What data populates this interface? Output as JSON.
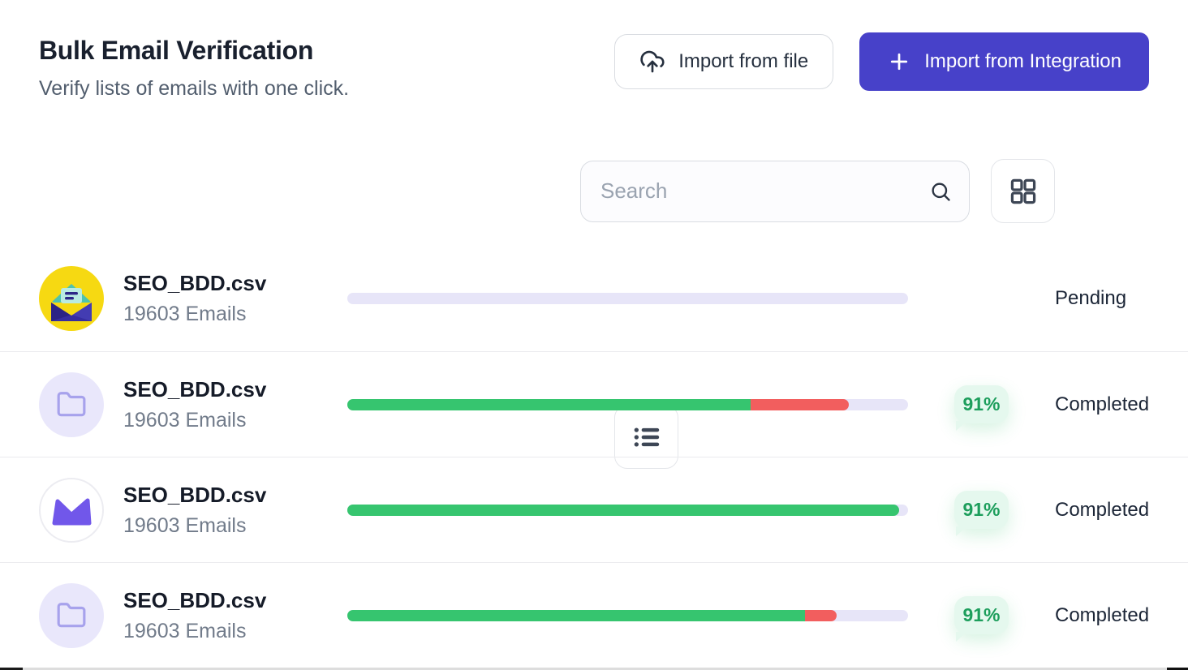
{
  "page": {
    "title": "Bulk Email Verification",
    "subtitle": "Verify lists of emails with one click."
  },
  "header_actions": {
    "import_file_label": "Import from file",
    "import_integration_label": "Import from Integration"
  },
  "toolbar": {
    "search_placeholder": "Search",
    "view_modes": [
      "list-view",
      "grid-view"
    ]
  },
  "colors": {
    "accent": "#4741c9",
    "green": "#36c56f",
    "red": "#f25e5e",
    "track": "#e7e5f8",
    "badge-bg": "#e5f8ee",
    "badge-text": "#1d9e5c",
    "avatar-yellow": "#f6d912",
    "avatar-lavender": "#e9e7fb",
    "brand-purple": "#7157ea"
  },
  "rows": [
    {
      "file_name": "SEO_BDD.csv",
      "email_count": "19603 Emails",
      "icon": "open-envelope-yellow",
      "progress": {
        "green_pct": 0,
        "red_pct": 0
      },
      "percent_label": "",
      "status": "Pending"
    },
    {
      "file_name": "SEO_BDD.csv",
      "email_count": "19603 Emails",
      "icon": "folder",
      "progress": {
        "green_pct": 71.9,
        "red_pct": 17.5
      },
      "percent_label": "91%",
      "status": "Completed"
    },
    {
      "file_name": "SEO_BDD.csv",
      "email_count": "19603 Emails",
      "icon": "mail-brand",
      "progress": {
        "green_pct": 98.4,
        "red_pct": 0
      },
      "percent_label": "91%",
      "status": "Completed"
    },
    {
      "file_name": "SEO_BDD.csv",
      "email_count": "19603 Emails",
      "icon": "folder",
      "progress": {
        "green_pct": 81.6,
        "red_pct": 5.7
      },
      "percent_label": "91%",
      "status": "Completed"
    }
  ]
}
